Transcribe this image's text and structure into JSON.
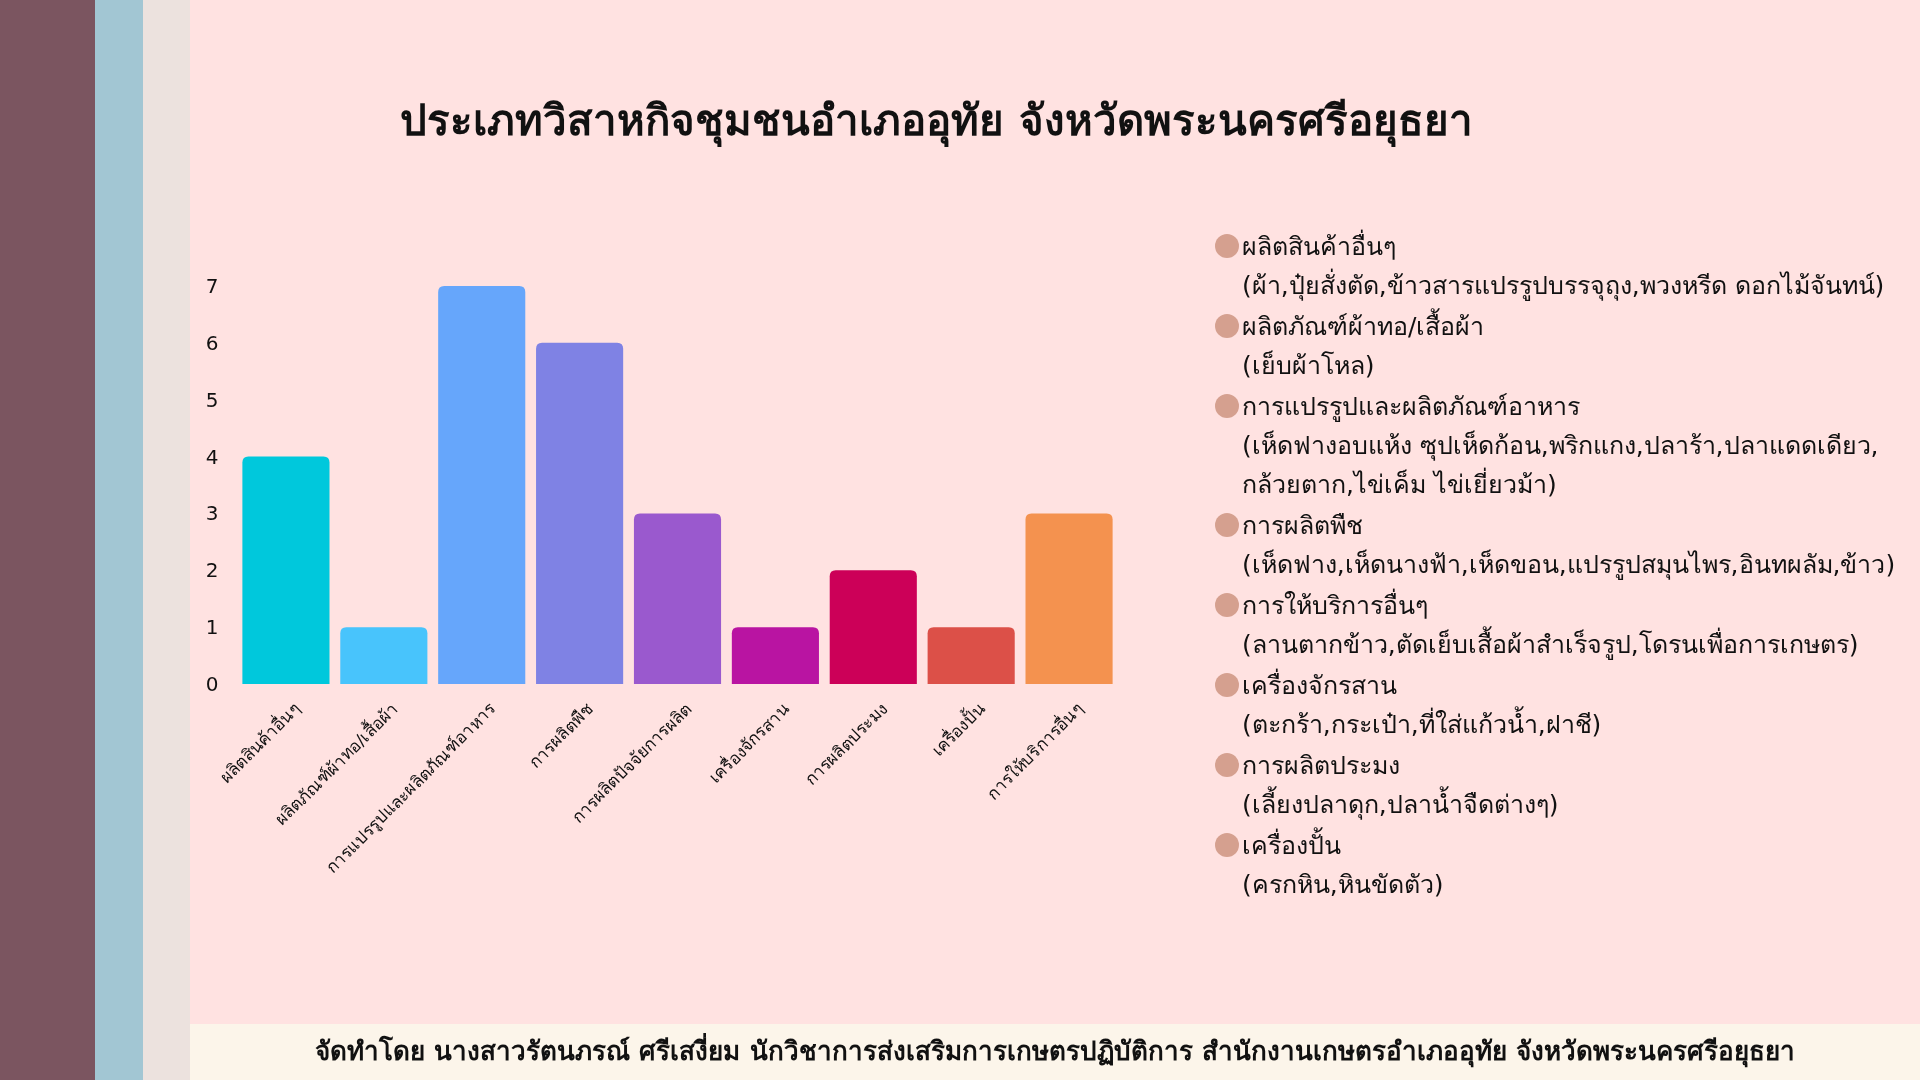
{
  "chart_data": {
    "type": "bar",
    "title": "ประเภทวิสาหกิจชุมชนอำเภออุทัย จังหวัดพระนครศรีอยุธยา",
    "categories": [
      "ผลิตสินค้าอื่นๆ",
      "ผลิตภัณฑ์ผ้าทอ/เสื้อผ้า",
      "การแปรรูปและผลิตภัณฑ์อาหาร",
      "การผลิตพืช",
      "การผลิตปัจจัยการผลิต",
      "เครื่องจักรสาน",
      "การผลิตประมง",
      "เครื่องปั้น",
      "การให้บริการอื่นๆ"
    ],
    "values": [
      4,
      1,
      7,
      6,
      3,
      1,
      2,
      1,
      3
    ],
    "colors": [
      "#00c8dc",
      "#48c4fc",
      "#66a6fb",
      "#7f82e4",
      "#9a59ce",
      "#b914a2",
      "#cc0058",
      "#dc5048",
      "#f4924f"
    ],
    "ylim": [
      0,
      7
    ],
    "yticks": [
      0,
      1,
      2,
      3,
      4,
      5,
      6,
      7
    ],
    "grid": false,
    "annotations": [
      "ผลิตสินค้าอื่นๆ",
      "(ผ้า,ปุ๋ยสั่งตัด,ข้าวสารแปรรูปบรรจุถุง,พวงหรีด ดอกไม้จันทน์)",
      "ผลิตภัณฑ์ผ้าทอ/เสื้อผ้า",
      "(เย็บผ้าโหล)",
      "การแปรรูปและผลิตภัณฑ์อาหาร",
      "(เห็ดฟางอบแห้ง ซุปเห็ดก้อน,พริกแกง,ปลาร้า,ปลาแดดเดียว,กล้วยตาก,ไข่เค็ม ไข่เยี่ยวม้า)",
      "การผลิตพืช",
      "(เห็ดฟาง,เห็ดนางฟ้า,เห็ดขอน,แปรรูปสมุนไพร,อินทผลัม,ข้าว)",
      "การให้บริการอื่นๆ",
      "(ลานตากข้าว,ตัดเย็บเสื้อผ้าสำเร็จรูป,โดรนเพื่อการเกษตร)",
      "เครื่องจักรสาน",
      "(ตะกร้า,กระเป๋า,ที่ใส่แก้วน้ำ,ฝาชี)",
      "การผลิตประมง",
      "(เลี้ยงปลาดุก,ปลาน้ำจืดต่างๆ)",
      "เครื่องปั้น",
      "(ครกหิน,หินขัดตัว)",
      "จัดทำโดย นางสาวรัตนภรณ์ ศรีเสงี่ยม นักวิชาการส่งเสริมการเกษตรปฏิบัติการ สำนักงานเกษตรอำเภออุทัย จังหวัดพระนครศรีอยุธยา"
    ]
  }
}
